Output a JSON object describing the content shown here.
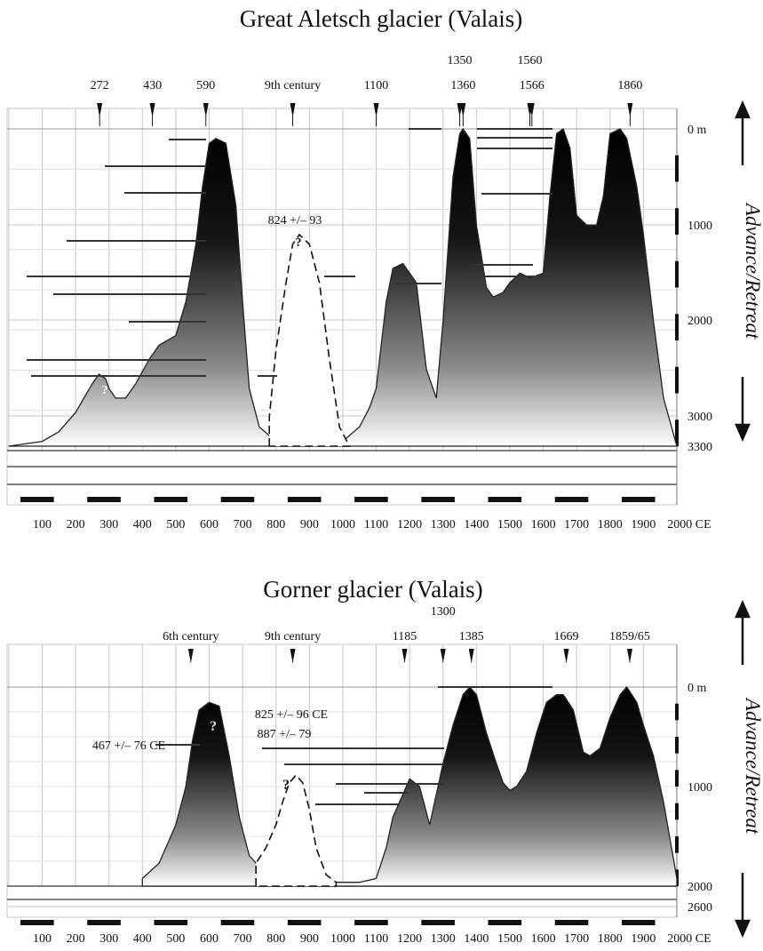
{
  "chart_data": [
    {
      "type": "area",
      "title": "Great Aletsch glacier (Valais)",
      "x_tick_labels": [
        "100",
        "200",
        "300",
        "400",
        "500",
        "600",
        "700",
        "800",
        "900",
        "1000",
        "1100",
        "1200",
        "1300",
        "1400",
        "1500",
        "1600",
        "1700",
        "1800",
        "1900",
        "2000 CE"
      ],
      "y_tick_labels": [
        "0 m",
        "1000",
        "2000",
        "3000",
        "3300"
      ],
      "xlim": [
        0,
        2020
      ],
      "ylim": [
        0,
        3300
      ],
      "side_label": {
        "advance": "Advance",
        "sep": "/",
        "retreat": "Retreat"
      },
      "series": [
        {
          "name": "",
          "x": [
            0,
            100,
            150,
            200,
            250,
            270,
            290,
            300,
            320,
            350,
            380,
            420,
            450,
            500,
            530,
            560,
            580,
            600,
            620,
            650,
            680,
            700,
            720,
            750,
            800,
            850,
            900,
            950,
            1000,
            1050,
            1080,
            1100,
            1130,
            1150,
            1180,
            1220,
            1250,
            1280,
            1300,
            1330,
            1350,
            1360,
            1380,
            1400,
            1430,
            1450,
            1480,
            1500,
            1530,
            1560,
            1600,
            1620,
            1640,
            1660,
            1680,
            1700,
            1730,
            1760,
            1780,
            1800,
            1830,
            1850,
            1880,
            1900,
            1930,
            1960,
            2000
          ],
          "y": [
            3300,
            3250,
            3150,
            2950,
            2650,
            2550,
            2600,
            2700,
            2800,
            2800,
            2650,
            2400,
            2250,
            2150,
            1800,
            1200,
            600,
            150,
            100,
            150,
            800,
            1800,
            2700,
            3100,
            3250,
            3300,
            3300,
            3300,
            3250,
            3100,
            2900,
            2700,
            1800,
            1450,
            1400,
            1600,
            2500,
            2800,
            2000,
            500,
            50,
            0,
            100,
            1000,
            1650,
            1750,
            1700,
            1600,
            1500,
            1550,
            1500,
            700,
            50,
            0,
            200,
            900,
            1000,
            1000,
            700,
            50,
            0,
            100,
            600,
            1100,
            2000,
            2800,
            3300
          ]
        },
        {
          "name": "",
          "x": [
            780,
            800,
            830,
            850,
            870,
            900,
            930,
            960,
            990,
            1020
          ],
          "y": [
            3000,
            2300,
            1600,
            1200,
            1100,
            1200,
            1600,
            2400,
            3100,
            3300
          ]
        }
      ],
      "markers": [
        {
          "label": "272",
          "x": 272
        },
        {
          "label": "430",
          "x": 430
        },
        {
          "label": "590",
          "x": 590
        },
        {
          "label": "9th century",
          "x": 850
        },
        {
          "label": "1100",
          "x": 1100
        },
        {
          "label": "1350",
          "x": 1350
        },
        {
          "label": "1360",
          "x": 1360
        },
        {
          "label": "1560",
          "x": 1560
        },
        {
          "label": "1566",
          "x": 1566
        },
        {
          "label": "1860",
          "x": 1860
        }
      ],
      "annotations": [
        {
          "text": "824 +/– 93",
          "x": 824
        },
        {
          "text": "?",
          "x": 824
        },
        {
          "text": "?",
          "x": 290
        }
      ]
    },
    {
      "type": "area",
      "title": "Gorner glacier (Valais)",
      "x_tick_labels": [
        "100",
        "200",
        "300",
        "400",
        "500",
        "600",
        "700",
        "800",
        "900",
        "1000",
        "1100",
        "1200",
        "1300",
        "1400",
        "1500",
        "1600",
        "1700",
        "1800",
        "1900",
        "2000 CE"
      ],
      "y_tick_labels": [
        "0 m",
        "1000",
        "2000",
        "2600"
      ],
      "xlim": [
        0,
        2020
      ],
      "ylim": [
        0,
        2600
      ],
      "side_label": {
        "advance": "Advance",
        "sep": "/",
        "retreat": "Retreat"
      },
      "series": [
        {
          "name": "",
          "x": [
            400,
            450,
            500,
            530,
            550,
            570,
            600,
            630,
            660,
            690,
            720,
            760,
            780,
            800,
            830,
            850,
            880,
            900,
            930,
            960,
            1000,
            1050,
            1100,
            1130,
            1150,
            1200,
            1230,
            1260,
            1300,
            1330,
            1360,
            1380,
            1400,
            1430,
            1460,
            1480,
            1500,
            1520,
            1550,
            1580,
            1610,
            1640,
            1660,
            1690,
            1720,
            1740,
            1770,
            1800,
            1830,
            1850,
            1880,
            1900,
            1930,
            1960,
            2000
          ],
          "y": [
            2500,
            2300,
            1800,
            1300,
            700,
            300,
            200,
            250,
            900,
            1700,
            2200,
            2400,
            2500,
            2500,
            2500,
            2500,
            2550,
            2550,
            2550,
            2550,
            2550,
            2550,
            2500,
            2100,
            1700,
            1200,
            1300,
            1800,
            1000,
            500,
            100,
            0,
            100,
            600,
            1000,
            1250,
            1350,
            1300,
            1100,
            600,
            200,
            100,
            100,
            300,
            850,
            900,
            800,
            400,
            100,
            0,
            200,
            500,
            900,
            1500,
            2500
          ]
        },
        {
          "name": "",
          "x": [
            740,
            770,
            800,
            820,
            840,
            860,
            880,
            900,
            920,
            950,
            980
          ],
          "y": [
            2300,
            2100,
            1800,
            1500,
            1250,
            1150,
            1250,
            1600,
            2100,
            2450,
            2550
          ]
        }
      ],
      "markers": [
        {
          "label": "6th century",
          "x": 545
        },
        {
          "label": "9th century",
          "x": 850
        },
        {
          "label": "1185",
          "x": 1185
        },
        {
          "label": "1300",
          "x": 1300
        },
        {
          "label": "1385",
          "x": 1385
        },
        {
          "label": "1669",
          "x": 1669
        },
        {
          "label": "1859/65",
          "x": 1859
        }
      ],
      "annotations": [
        {
          "text": "467 +/– 76 CE",
          "x": 467
        },
        {
          "text": "825 +/– 96 CE",
          "x": 825
        },
        {
          "text": "887 +/– 79",
          "x": 887
        },
        {
          "text": "?",
          "x": 620
        },
        {
          "text": "?",
          "x": 620
        },
        {
          "text": "?",
          "x": 850
        }
      ]
    }
  ]
}
